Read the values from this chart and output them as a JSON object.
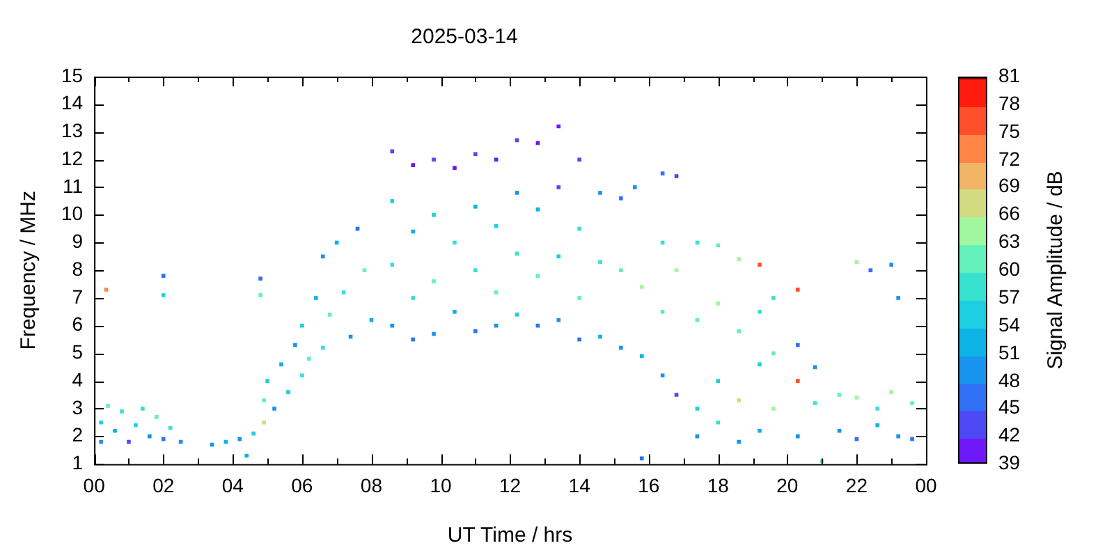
{
  "chart_data": {
    "type": "scatter",
    "title": "2025-03-14",
    "xlabel": "UT Time / hrs",
    "ylabel": "Frequency / MHz",
    "clabel": "Signal Amplitude / dB",
    "xlim": [
      0,
      24
    ],
    "xticks": [
      {
        "value": 0,
        "label": "00"
      },
      {
        "value": 1,
        "label": null
      },
      {
        "value": 2,
        "label": "02"
      },
      {
        "value": 3,
        "label": null
      },
      {
        "value": 4,
        "label": "04"
      },
      {
        "value": 5,
        "label": null
      },
      {
        "value": 6,
        "label": "06"
      },
      {
        "value": 7,
        "label": null
      },
      {
        "value": 8,
        "label": "08"
      },
      {
        "value": 9,
        "label": null
      },
      {
        "value": 10,
        "label": "10"
      },
      {
        "value": 11,
        "label": null
      },
      {
        "value": 12,
        "label": "12"
      },
      {
        "value": 13,
        "label": null
      },
      {
        "value": 14,
        "label": "14"
      },
      {
        "value": 15,
        "label": null
      },
      {
        "value": 16,
        "label": "16"
      },
      {
        "value": 17,
        "label": null
      },
      {
        "value": 18,
        "label": "18"
      },
      {
        "value": 19,
        "label": null
      },
      {
        "value": 20,
        "label": "20"
      },
      {
        "value": 21,
        "label": null
      },
      {
        "value": 22,
        "label": "22"
      },
      {
        "value": 23,
        "label": null
      },
      {
        "value": 24,
        "label": "00"
      }
    ],
    "ylim": [
      1,
      15
    ],
    "yticks": [
      1,
      2,
      3,
      4,
      5,
      6,
      7,
      8,
      9,
      10,
      11,
      12,
      13,
      14,
      15
    ],
    "clim": [
      39,
      81
    ],
    "cticks": [
      39,
      42,
      45,
      48,
      51,
      54,
      57,
      60,
      63,
      66,
      69,
      72,
      75,
      78,
      81
    ],
    "grid": false,
    "legend": false,
    "marker": "square",
    "x": [
      0.2,
      0.2,
      0.4,
      0.6,
      0.8,
      1.0,
      1.2,
      1.4,
      1.6,
      1.8,
      2.0,
      2.2,
      2.5,
      0.35,
      2.0,
      2.0,
      4.8,
      4.8,
      3.4,
      3.8,
      4.2,
      4.4,
      4.6,
      4.9,
      4.9,
      5.0,
      5.2,
      5.4,
      5.6,
      5.8,
      6.0,
      6.0,
      6.2,
      6.4,
      6.6,
      6.6,
      6.8,
      7.0,
      7.2,
      7.4,
      7.6,
      7.8,
      8.0,
      8.6,
      8.6,
      8.6,
      8.6,
      9.2,
      9.2,
      9.2,
      9.2,
      9.8,
      9.8,
      9.8,
      9.8,
      10.4,
      10.4,
      10.4,
      11.0,
      11.0,
      11.0,
      11.0,
      11.6,
      11.6,
      11.6,
      11.6,
      12.2,
      12.2,
      12.2,
      12.2,
      12.8,
      12.8,
      12.8,
      12.8,
      13.4,
      13.4,
      13.4,
      13.4,
      14.0,
      14.0,
      14.0,
      14.0,
      14.6,
      14.6,
      14.6,
      15.2,
      15.2,
      15.2,
      15.6,
      15.8,
      15.8,
      15.8,
      16.4,
      16.4,
      16.4,
      16.4,
      16.8,
      16.8,
      16.8,
      17.4,
      17.4,
      17.4,
      17.4,
      18.0,
      18.0,
      18.0,
      18.0,
      18.6,
      18.6,
      18.6,
      18.6,
      19.2,
      19.2,
      19.2,
      19.2,
      19.6,
      19.6,
      19.6,
      20.3,
      20.3,
      20.3,
      20.3,
      20.8,
      20.8,
      21.0,
      21.5,
      21.5,
      22.0,
      22.0,
      22.0,
      22.4,
      22.6,
      22.6,
      23.0,
      23.0,
      23.2,
      23.2,
      23.6,
      23.6
    ],
    "values": [
      1.8,
      2.5,
      3.1,
      2.2,
      2.9,
      1.8,
      2.4,
      3.0,
      2.0,
      2.7,
      1.9,
      2.3,
      1.8,
      7.3,
      7.8,
      7.1,
      7.7,
      7.1,
      1.7,
      1.8,
      1.9,
      1.3,
      2.1,
      2.5,
      3.3,
      4.0,
      3.0,
      4.6,
      3.6,
      5.3,
      4.2,
      6.0,
      4.8,
      7.0,
      5.2,
      8.5,
      6.4,
      9.0,
      7.2,
      5.6,
      9.5,
      8.0,
      6.2,
      12.3,
      10.5,
      8.2,
      6.0,
      11.8,
      9.4,
      7.0,
      5.5,
      12.0,
      10.0,
      7.6,
      5.7,
      11.7,
      9.0,
      6.5,
      12.2,
      10.3,
      8.0,
      5.8,
      12.0,
      9.6,
      7.2,
      6.0,
      12.7,
      10.8,
      8.6,
      6.4,
      12.6,
      10.2,
      7.8,
      6.0,
      13.2,
      11.0,
      8.5,
      6.2,
      12.0,
      9.5,
      7.0,
      5.5,
      10.8,
      8.3,
      5.6,
      10.6,
      8.0,
      5.2,
      11.0,
      7.4,
      4.9,
      1.2,
      11.5,
      9.0,
      6.5,
      4.2,
      11.4,
      8.0,
      3.5,
      9.0,
      6.2,
      3.0,
      2.0,
      8.9,
      6.8,
      4.0,
      2.5,
      8.4,
      5.8,
      3.3,
      1.8,
      8.2,
      6.5,
      4.6,
      2.2,
      7.0,
      5.0,
      3.0,
      7.3,
      5.3,
      4.0,
      2.0,
      4.5,
      3.2,
      1.1,
      3.5,
      2.2,
      8.3,
      3.4,
      1.9,
      8.0,
      3.0,
      2.4,
      8.2,
      3.6,
      7.0,
      2.0,
      3.2,
      1.9
    ],
    "cvalues": [
      50,
      57,
      63,
      54,
      60,
      45,
      57,
      60,
      50,
      63,
      48,
      60,
      51,
      75,
      48,
      57,
      48,
      63,
      51,
      54,
      51,
      54,
      57,
      69,
      63,
      57,
      51,
      54,
      57,
      51,
      60,
      57,
      63,
      54,
      60,
      51,
      63,
      54,
      60,
      51,
      48,
      63,
      54,
      45,
      57,
      60,
      51,
      42,
      54,
      60,
      48,
      45,
      57,
      63,
      51,
      42,
      60,
      54,
      45,
      54,
      60,
      48,
      42,
      57,
      63,
      51,
      45,
      51,
      60,
      57,
      42,
      54,
      63,
      48,
      39,
      45,
      57,
      51,
      45,
      60,
      63,
      48,
      51,
      60,
      54,
      48,
      63,
      51,
      51,
      66,
      54,
      48,
      48,
      60,
      63,
      51,
      45,
      66,
      45,
      60,
      63,
      57,
      51,
      63,
      66,
      57,
      60,
      66,
      63,
      69,
      51,
      78,
      60,
      57,
      54,
      60,
      63,
      66,
      78,
      48,
      78,
      51,
      51,
      60,
      63,
      63,
      51,
      66,
      66,
      48,
      48,
      60,
      54,
      51,
      66,
      51,
      51,
      63,
      48
    ]
  }
}
